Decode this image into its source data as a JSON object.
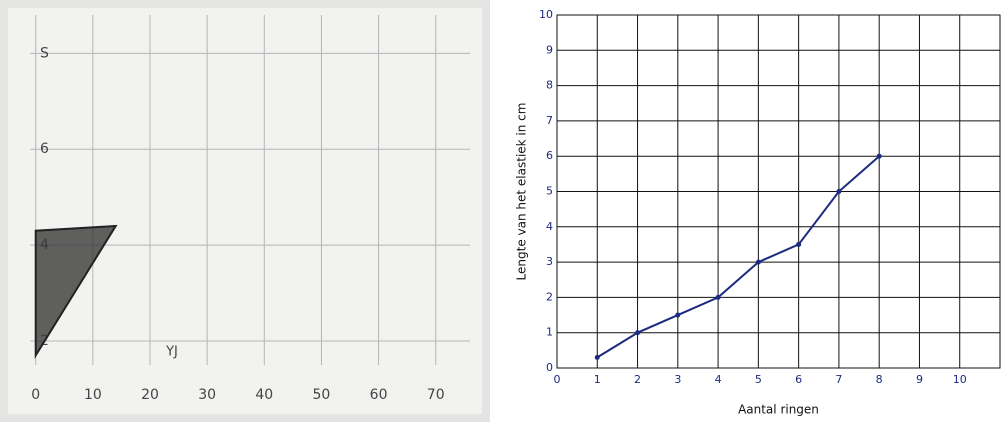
{
  "chart_data": [
    {
      "type": "polygon",
      "x": [
        0,
        0,
        14
      ],
      "values": [
        1.7,
        4.3,
        4.4
      ],
      "color": "#3a3a3a",
      "xlim": [
        -1,
        76
      ],
      "ylim": [
        1.5,
        8.8
      ],
      "xticks": [
        0,
        10,
        20,
        30,
        40,
        50,
        60,
        70
      ],
      "yticks": [
        2,
        4,
        6,
        {
          "value": 8,
          "label": "S"
        }
      ],
      "annotation": "YJ",
      "grid": true
    },
    {
      "type": "line",
      "x": [
        1,
        2,
        3,
        4,
        5,
        6,
        7,
        8
      ],
      "values": [
        0.3,
        1,
        1.5,
        2,
        3,
        3.5,
        5,
        6
      ],
      "color": "#1c2a80",
      "xlabel": "Aantal ringen",
      "ylabel": "Lengte van het elastiek in cm",
      "xlim": [
        0,
        11
      ],
      "ylim": [
        0,
        10
      ],
      "xticks": [
        0,
        1,
        2,
        3,
        4,
        5,
        6,
        7,
        8,
        9,
        10
      ],
      "yticks": [
        0,
        1,
        2,
        3,
        4,
        5,
        6,
        7,
        8,
        9,
        10
      ],
      "grid": true
    }
  ]
}
